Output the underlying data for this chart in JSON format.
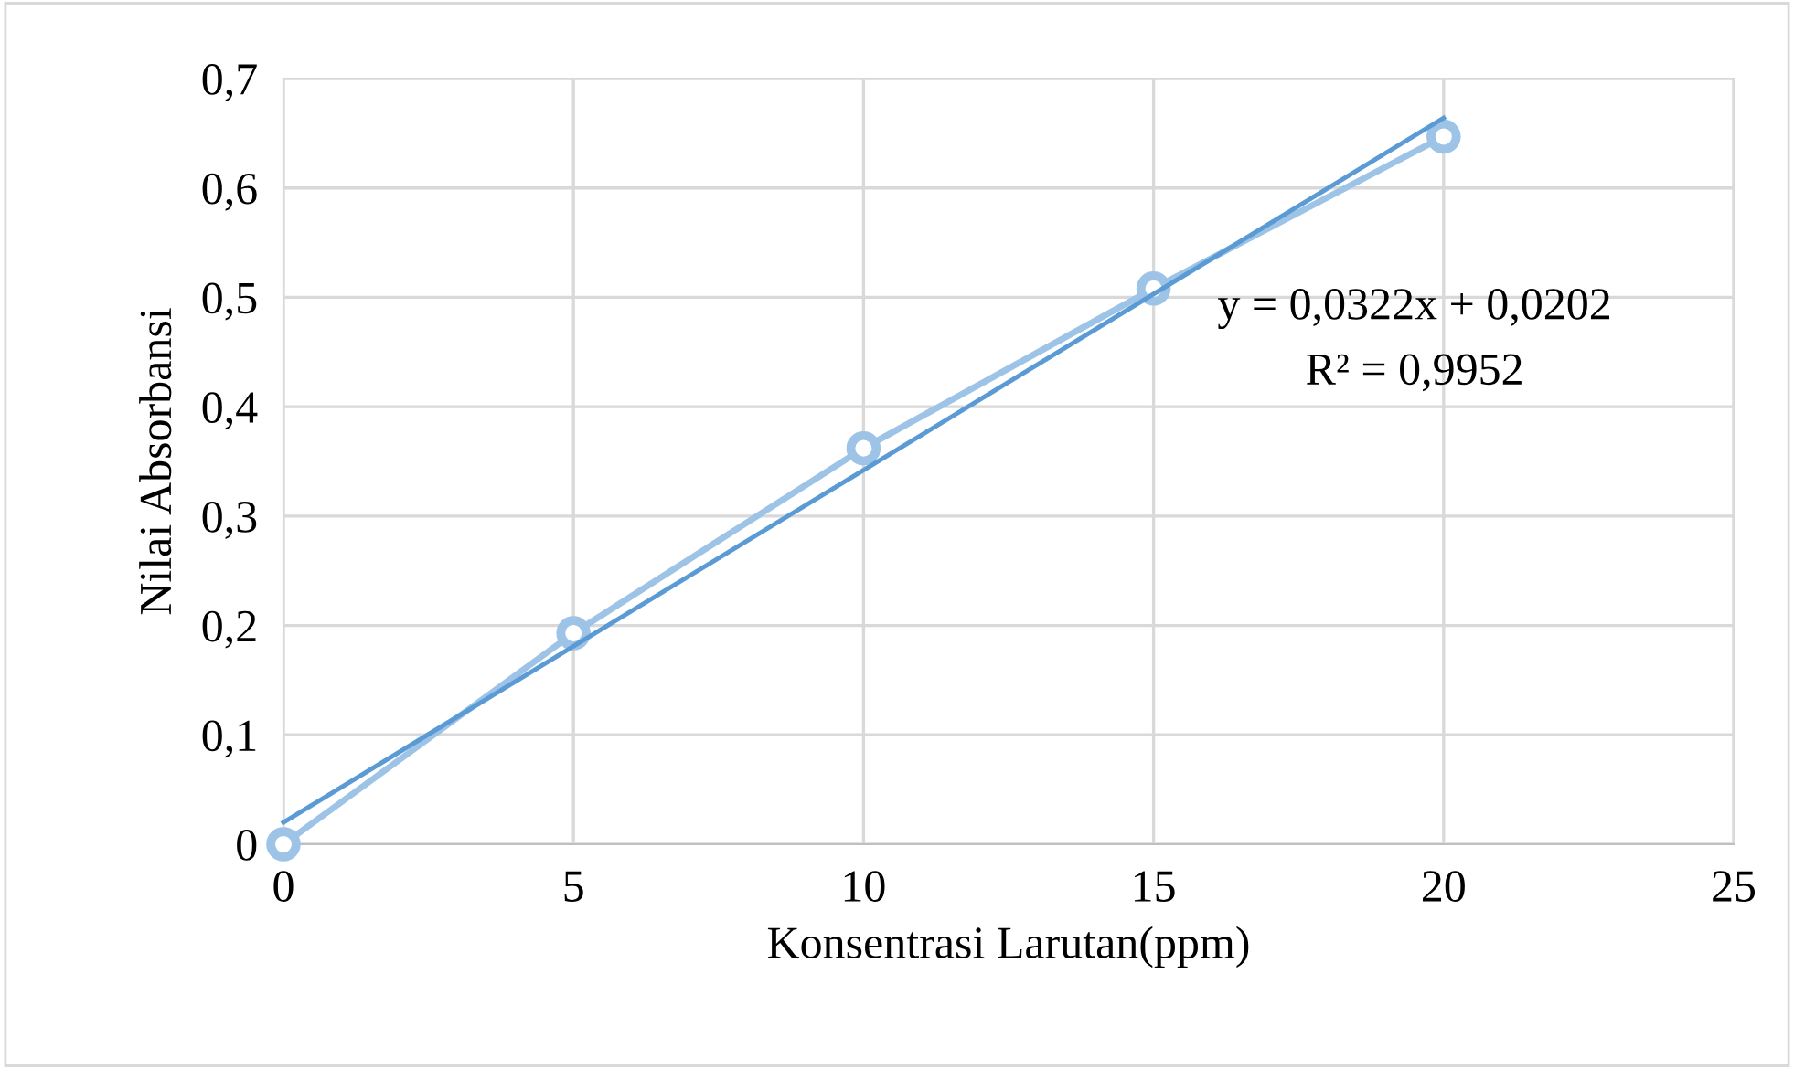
{
  "chart_data": {
    "type": "line",
    "xlabel": "Konsentrasi Larutan(ppm)",
    "ylabel": "Nilai Absorbansi",
    "xlim": [
      0,
      25
    ],
    "xticks": [
      0,
      5,
      10,
      15,
      20,
      25
    ],
    "ylim": [
      0,
      0.7
    ],
    "yticks": [
      {
        "value": 0,
        "label": "0"
      },
      {
        "value": 0.1,
        "label": "0,1"
      },
      {
        "value": 0.2,
        "label": "0,2"
      },
      {
        "value": 0.3,
        "label": "0,3"
      },
      {
        "value": 0.4,
        "label": "0,4"
      },
      {
        "value": 0.5,
        "label": "0,5"
      },
      {
        "value": 0.6,
        "label": "0,6"
      },
      {
        "value": 0.7,
        "label": "0,7"
      }
    ],
    "grid": true,
    "legend": false,
    "series": [
      {
        "color": "#9dc3e6",
        "marker": "circle",
        "x": [
          0,
          5,
          10,
          15,
          20
        ],
        "values": [
          0,
          0.193,
          0.362,
          0.508,
          0.647
        ]
      },
      {
        "type": "line",
        "color": "#5b9bd5",
        "marker": "none",
        "x": [
          0,
          20
        ],
        "values": [
          0.02,
          0.664
        ]
      }
    ],
    "annotations": [
      "y = 0,0322x + 0,0202",
      "R² = 0,9952"
    ]
  }
}
